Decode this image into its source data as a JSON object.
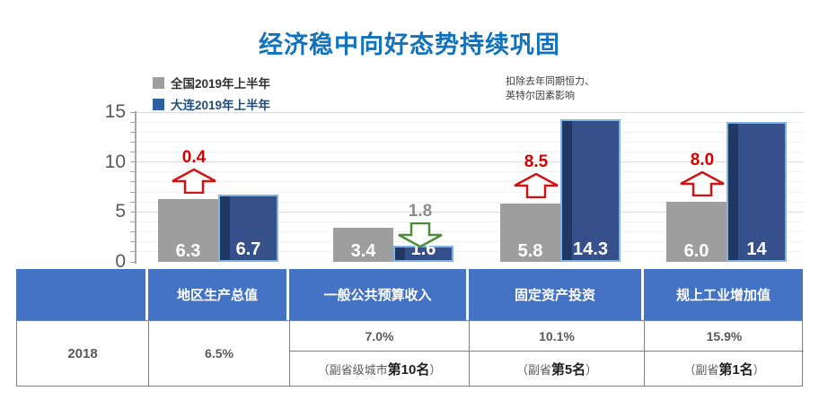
{
  "title": "经济稳中向好态势持续巩固",
  "legend": [
    {
      "label": "全国2019年上半年",
      "color": "#9E9E9E",
      "text_color": "#333333"
    },
    {
      "label": "大连2019年上半年",
      "color": "#2E5FA5",
      "text_color": "#1F4E79"
    }
  ],
  "annotation_note": "扣除去年同期恒力、\n英特尔因素影响",
  "chart_data": {
    "type": "bar",
    "categories": [
      "地区生产总值",
      "一般公共预算收入",
      "固定资产投资",
      "规上工业增加值"
    ],
    "series": [
      {
        "name": "全国2019年上半年",
        "color": "#9E9E9E",
        "values": [
          6.3,
          3.4,
          5.8,
          6.0
        ],
        "labels": [
          "6.3",
          "3.4",
          "5.8",
          "6.0"
        ]
      },
      {
        "name": "大连2019年上半年",
        "color": "#35508A",
        "values": [
          6.7,
          1.6,
          14.3,
          14
        ],
        "labels": [
          "6.7",
          "1.6",
          "14.3",
          "14"
        ]
      }
    ],
    "ylim": [
      0,
      15
    ],
    "yticks": [
      0,
      5,
      10,
      15
    ],
    "grid": "minor-horizontal",
    "legend_position": "top-left",
    "gap_annotations": [
      {
        "group": 0,
        "label": "0.4",
        "direction": "up",
        "arrow_color": "#D01414",
        "label_color": "#D40000"
      },
      {
        "group": 1,
        "label": "1.8",
        "direction": "down",
        "arrow_color": "#4E8C3C",
        "label_color": "#8C8C8C"
      },
      {
        "group": 2,
        "label": "8.5",
        "direction": "up",
        "arrow_color": "#D01414",
        "label_color": "#D40000"
      },
      {
        "group": 3,
        "label": "8.0",
        "direction": "up",
        "arrow_color": "#D01414",
        "label_color": "#D40000"
      }
    ]
  },
  "table": {
    "headers": [
      "",
      "地区生产总值",
      "一般公共预算收入",
      "固定资产投资",
      "规上工业增加值"
    ],
    "row_label": "2018",
    "cells": [
      {
        "value": "6.5%"
      },
      {
        "value": "7.0%",
        "rank_prefix": "（副省级城市",
        "rank_bold": "第10名",
        "rank_suffix": "）"
      },
      {
        "value": "10.1%",
        "rank_prefix": "（副省",
        "rank_bold": "第5名",
        "rank_suffix": "）"
      },
      {
        "value": "15.9%",
        "rank_prefix": "（副省",
        "rank_bold": "第1名",
        "rank_suffix": "）"
      }
    ]
  },
  "colors": {
    "title": "#1172BE",
    "national_bar": "#9E9E9E",
    "dalian_bar": "#35508A",
    "dalian_bar_border": "#7EB3E3",
    "dalian_bar_shadow": "#1F3864",
    "up_arrow": "#D01414",
    "down_arrow": "#4E8C3C",
    "table_header_bg": "#4472C4",
    "axis_text": "#595959"
  }
}
